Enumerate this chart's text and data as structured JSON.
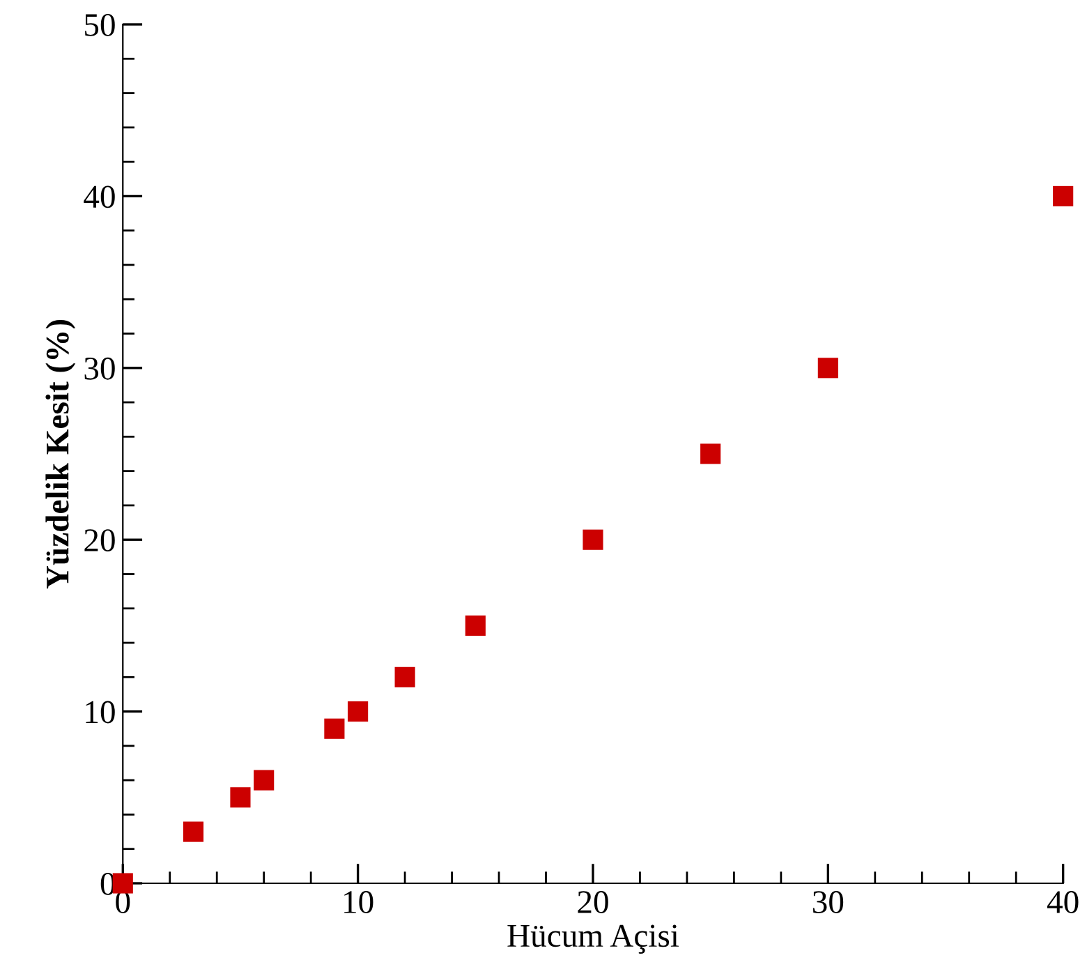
{
  "chart_data": {
    "type": "scatter",
    "xlabel": "Hücum Açisi",
    "ylabel": "Yüzdelik Kesit (%)",
    "x": [
      0,
      3,
      5,
      6,
      9,
      10,
      12,
      15,
      20,
      25,
      30,
      40
    ],
    "series": [
      {
        "color": "#cc0000",
        "values": [
          0,
          3,
          5,
          6,
          9,
          10,
          12,
          15,
          20,
          25,
          30,
          40
        ]
      }
    ],
    "xlim": [
      0,
      40
    ],
    "ylim": [
      0,
      50
    ],
    "xticks": [
      0,
      10,
      20,
      30,
      40
    ],
    "yticks": [
      0,
      10,
      20,
      30,
      40,
      50
    ],
    "marker": "square",
    "grid": false,
    "legend": false
  }
}
